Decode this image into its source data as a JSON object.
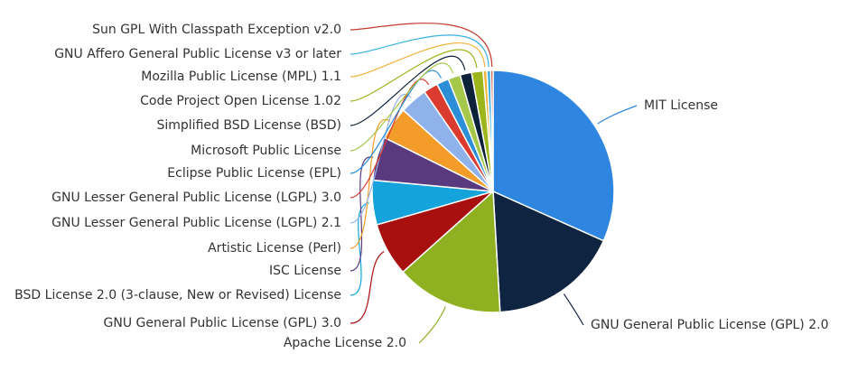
{
  "chart_data": {
    "type": "pie",
    "title": "",
    "slices": [
      {
        "label": "MIT License",
        "value": 31.0,
        "color": "#2f86e0"
      },
      {
        "label": "GNU General Public License (GPL) 2.0",
        "value": 17.0,
        "color": "#0f2440"
      },
      {
        "label": "Apache License 2.0",
        "value": 14.0,
        "color": "#8fb021"
      },
      {
        "label": "GNU General Public License (GPL) 3.0",
        "value": 7.0,
        "color": "#a81010"
      },
      {
        "label": "BSD License 2.0 (3-clause, New or Revised) License",
        "value": 5.8,
        "color": "#14a3da"
      },
      {
        "label": "ISC License",
        "value": 5.7,
        "color": "#5a3a7e"
      },
      {
        "label": "Artistic License (Perl)",
        "value": 4.3,
        "color": "#f39c2a"
      },
      {
        "label": "GNU Lesser General Public License (LGPL) 2.1",
        "value": 3.6,
        "color": "#8fb2ea"
      },
      {
        "label": "GNU Lesser General Public License (LGPL) 3.0",
        "value": 1.9,
        "color": "#db3a2f"
      },
      {
        "label": "Eclipse Public License (EPL)",
        "value": 1.6,
        "color": "#2c8ed6"
      },
      {
        "label": "Microsoft Public License",
        "value": 1.6,
        "color": "#a6c84a"
      },
      {
        "label": "Simplified BSD License (BSD)",
        "value": 1.5,
        "color": "#0d2238"
      },
      {
        "label": "Code Project Open License 1.02",
        "value": 1.5,
        "color": "#9bb51b"
      },
      {
        "label": "Mozilla Public License (MPL) 1.1",
        "value": 0.5,
        "color": "#f0b33a"
      },
      {
        "label": "GNU Affero General Public License v3 or later",
        "value": 0.5,
        "color": "#3ab0e0"
      },
      {
        "label": "Sun GPL With Classpath Exception v2.0",
        "value": 0.3,
        "color": "#c0392b"
      }
    ]
  }
}
